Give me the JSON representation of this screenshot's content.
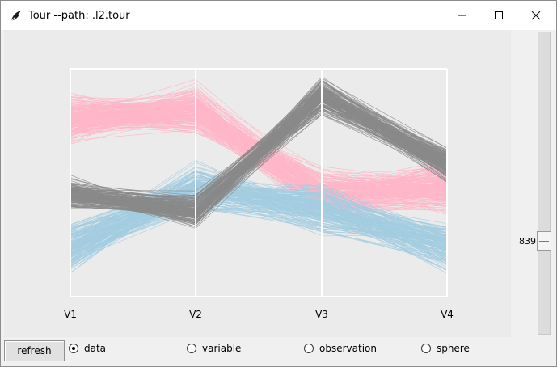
{
  "window": {
    "title": "Tour --path: .l2.tour",
    "icon": "feather-icon",
    "controls": [
      "minimize-icon",
      "maximize-icon",
      "close-icon"
    ]
  },
  "plot": {
    "type": "parallel-coordinates",
    "axes": [
      "V1",
      "V2",
      "V3",
      "V4"
    ],
    "background": "#ebebeb",
    "groups": [
      {
        "color": "#ffb6c8",
        "profile": [
          0.22,
          0.18,
          0.55,
          0.52
        ]
      },
      {
        "color": "#8a8a8a",
        "profile": [
          0.55,
          0.62,
          0.12,
          0.42
        ]
      },
      {
        "color": "#a3cde0",
        "profile": [
          0.78,
          0.52,
          0.62,
          0.78
        ]
      }
    ]
  },
  "scale": {
    "value": "839"
  },
  "controls": {
    "refresh_label": "refresh",
    "radio_options": [
      {
        "label": "data",
        "selected": true
      },
      {
        "label": "variable",
        "selected": false
      },
      {
        "label": "observation",
        "selected": false
      },
      {
        "label": "sphere",
        "selected": false
      }
    ]
  }
}
